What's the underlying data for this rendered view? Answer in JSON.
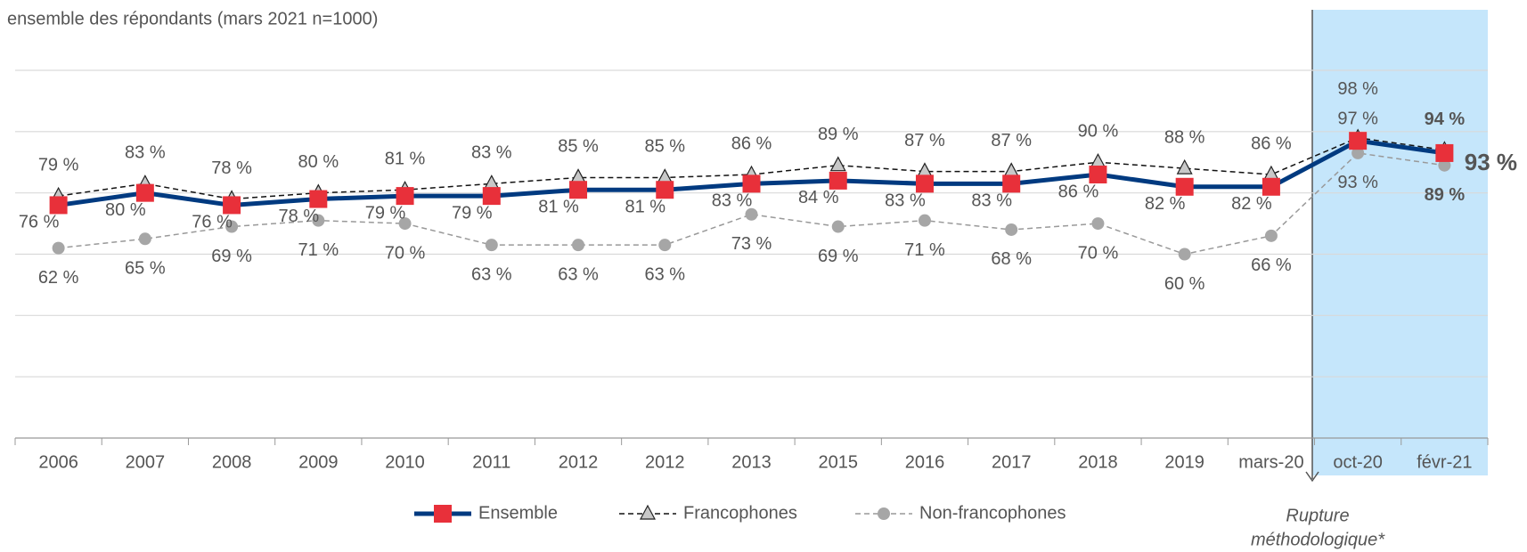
{
  "chart_data": {
    "type": "line",
    "subtitle": "ensemble des répondants (mars 2021 n=1000)",
    "annotation": [
      "Rupture",
      "méthodologique*"
    ],
    "categories": [
      "2006",
      "2007",
      "2008",
      "2009",
      "2010",
      "2011",
      "2012",
      "2012",
      "2013",
      "2015",
      "2016",
      "2017",
      "2018",
      "2019",
      "mars-20",
      "oct-20",
      "févr-21"
    ],
    "ylim": [
      0,
      120
    ],
    "yticks": [
      0,
      20,
      40,
      60,
      80,
      100,
      120
    ],
    "grid": true,
    "series": [
      {
        "name": "Ensemble",
        "color": "#003a80",
        "marker_color": "#e8303a",
        "values": [
          76,
          80,
          76,
          78,
          79,
          79,
          81,
          81,
          83,
          84,
          83,
          83,
          86,
          82,
          82,
          97,
          93
        ],
        "value_labels": [
          "76 %",
          "80 %",
          "76 %",
          "78 %",
          "79 %",
          "79 %",
          "81 %",
          "81 %",
          "83 %",
          "84 %",
          "83 %",
          "83 %",
          "86 %",
          "82 %",
          "82 %",
          "97 %",
          "93 %"
        ]
      },
      {
        "name": "Francophones",
        "color": "#111111",
        "marker_color": "#c8c8c8",
        "values": [
          79,
          83,
          78,
          80,
          81,
          83,
          85,
          85,
          86,
          89,
          87,
          87,
          90,
          88,
          86,
          98,
          94
        ],
        "value_labels": [
          "79 %",
          "83 %",
          "78 %",
          "80 %",
          "81 %",
          "83 %",
          "85 %",
          "85 %",
          "86 %",
          "89 %",
          "87 %",
          "87 %",
          "90 %",
          "88 %",
          "86 %",
          "98 %",
          "94 %"
        ]
      },
      {
        "name": "Non-francophones",
        "color": "#999999",
        "marker_color": "#a6a6a6",
        "values": [
          62,
          65,
          69,
          71,
          70,
          63,
          63,
          63,
          73,
          69,
          71,
          68,
          70,
          60,
          66,
          93,
          89
        ],
        "value_labels": [
          "62 %",
          "65 %",
          "69 %",
          "71 %",
          "70 %",
          "63 %",
          "63 %",
          "63 %",
          "73 %",
          "69 %",
          "71 %",
          "68 %",
          "70 %",
          "60 %",
          "66 %",
          "93 %",
          "89 %"
        ]
      }
    ]
  }
}
